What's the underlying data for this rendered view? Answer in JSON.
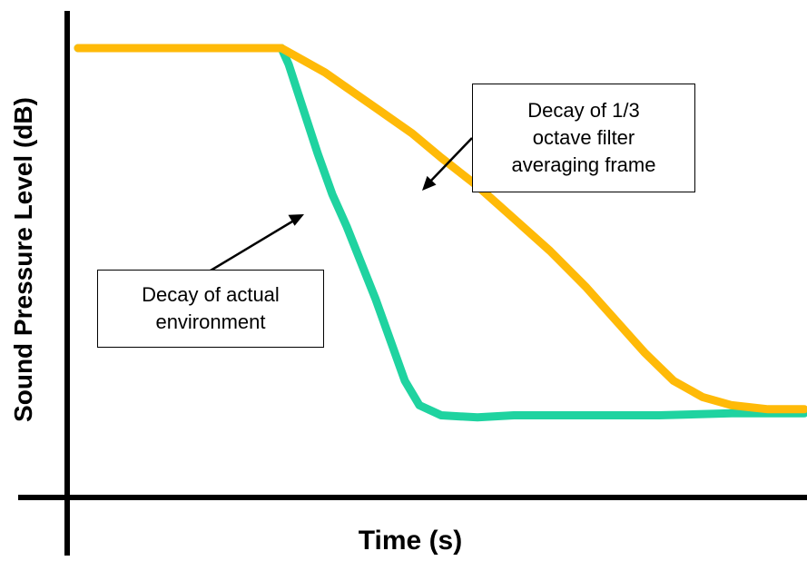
{
  "chart_data": {
    "type": "line",
    "title": "",
    "xlabel": "Time (s)",
    "ylabel": "Sound Pressure Level (dB)",
    "xlim": [
      0,
      100
    ],
    "ylim": [
      0,
      100
    ],
    "grid": false,
    "legend": "none",
    "series": [
      {
        "name": "Decay of 1/3 octave filter averaging frame",
        "color": "#FFBA08",
        "x": [
          0,
          10,
          20,
          28,
          30,
          34,
          38,
          42,
          46,
          50,
          55,
          60,
          65,
          70,
          74,
          78,
          82,
          86,
          90,
          95,
          100
        ],
        "y": [
          100,
          100,
          100,
          100,
          98,
          94,
          89,
          84,
          79,
          73,
          66,
          58,
          50,
          41,
          33,
          25,
          18,
          14,
          12,
          11,
          11
        ]
      },
      {
        "name": "Decay of actual environment",
        "color": "#1FD3A0",
        "x": [
          0,
          10,
          20,
          28,
          29,
          31,
          33,
          35,
          37,
          39,
          41,
          43,
          45,
          47,
          50,
          55,
          60,
          65,
          70,
          80,
          90,
          100
        ],
        "y": [
          100,
          100,
          100,
          100,
          96,
          85,
          74,
          64,
          56,
          47,
          38,
          28,
          18,
          12,
          9.5,
          9,
          9.5,
          9.5,
          9.5,
          9.5,
          10,
          10
        ]
      }
    ],
    "annotations": [
      {
        "lines": [
          "Decay of 1/3",
          "octave filter",
          "averaging frame"
        ]
      },
      {
        "lines": [
          "Decay of actual",
          "environment"
        ]
      }
    ]
  }
}
